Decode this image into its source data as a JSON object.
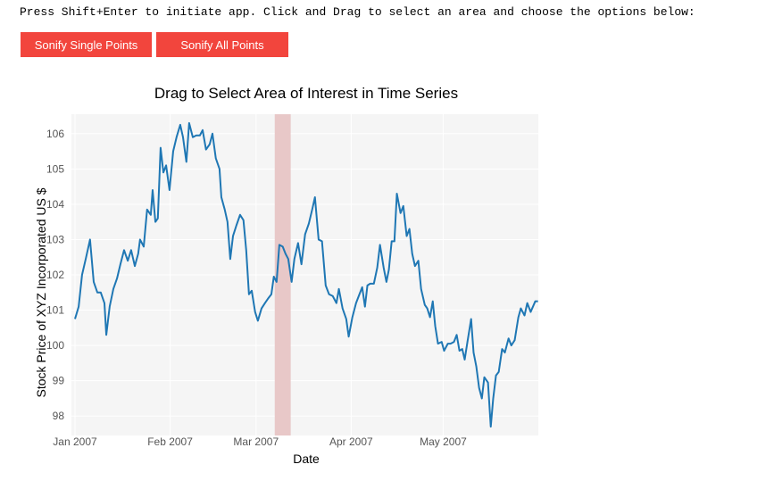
{
  "instruction": "Press Shift+Enter to initiate app. Click and Drag to select an area and choose the options below:",
  "buttons": [
    "Sonify Single Points",
    "Sonify All Points"
  ],
  "chart_data": {
    "type": "line",
    "title": "Drag to Select Area of Interest in Time Series",
    "x_label": "Date",
    "y_label": "Stock Price of XYZ Incorporated US $",
    "x": [
      0,
      1.2,
      2.3,
      3.5,
      4.9,
      6.1,
      7.3,
      8.4,
      9.6,
      10.2,
      11.3,
      12.5,
      13.7,
      14.8,
      16.0,
      17.2,
      18.3,
      19.5,
      20.6,
      21.2,
      22.4,
      23.5,
      24.7,
      25.3,
      26.2,
      27.0,
      27.9,
      28.8,
      29.7,
      30.8,
      32.0,
      33.1,
      34.3,
      35.2,
      36.3,
      37.2,
      38.4,
      39.5,
      40.7,
      41.6,
      42.7,
      43.9,
      44.8,
      45.9,
      47.1,
      47.7,
      48.8,
      49.7,
      50.6,
      51.5,
      52.6,
      53.8,
      54.9,
      55.8,
      56.7,
      57.6,
      58.7,
      59.6,
      60.8,
      61.9,
      63.1,
      64.0,
      64.8,
      65.7,
      66.6,
      67.7,
      68.6,
      69.5,
      70.6,
      71.5,
      72.7,
      73.8,
      75.0,
      76.2,
      77.3,
      78.2,
      79.4,
      80.5,
      81.7,
      82.8,
      84.0,
      85.2,
      86.0,
      87.2,
      88.4,
      89.2,
      90.4,
      91.6,
      92.7,
      93.6,
      94.5,
      95.3,
      96.2,
      97.4,
      98.5,
      99.4,
      100.6,
      101.5,
      102.3,
      103.2,
      104.1,
      104.9,
      106.1,
      107.0,
      108.1,
      109.0,
      109.9,
      110.8,
      111.9,
      112.8,
      114.0,
      114.8,
      115.7,
      116.6,
      117.4,
      118.3,
      119.5,
      120.3,
      121.5,
      122.4,
      123.5,
      124.4,
      125.3,
      126.2,
      127.0,
      127.9,
      129.1,
      129.9,
      130.8,
      131.7,
      132.6,
      133.4,
      134.6,
      135.5,
      136.3,
      137.2,
      138.1,
      139.2,
      140.1,
      141.3,
      142.2,
      143.3,
      144.5,
      145.3,
      146.5,
      147.4,
      148.5,
      150.0,
      150.9
    ],
    "series": [
      {
        "color": "#1f77b4",
        "values": [
          100.75,
          101.1,
          102.0,
          102.45,
          103.0,
          101.8,
          101.5,
          101.5,
          101.2,
          100.3,
          101.1,
          101.6,
          101.9,
          102.3,
          102.7,
          102.4,
          102.7,
          102.25,
          102.6,
          103.0,
          102.8,
          103.85,
          103.7,
          104.4,
          103.5,
          103.6,
          105.6,
          104.9,
          105.1,
          104.4,
          105.5,
          105.9,
          106.25,
          105.9,
          105.2,
          106.3,
          105.9,
          105.95,
          105.95,
          106.1,
          105.55,
          105.7,
          106.0,
          105.3,
          105.0,
          104.2,
          103.85,
          103.5,
          102.45,
          103.1,
          103.4,
          103.7,
          103.55,
          102.7,
          101.45,
          101.55,
          100.95,
          100.7,
          101.05,
          101.2,
          101.35,
          101.45,
          101.95,
          101.8,
          102.85,
          102.8,
          102.6,
          102.45,
          101.8,
          102.45,
          102.9,
          102.3,
          103.15,
          103.45,
          103.85,
          104.2,
          103.0,
          102.95,
          101.7,
          101.45,
          101.4,
          101.2,
          101.6,
          101.05,
          100.75,
          100.25,
          100.8,
          101.2,
          101.45,
          101.65,
          101.1,
          101.7,
          101.75,
          101.75,
          102.2,
          102.85,
          102.2,
          101.8,
          102.15,
          102.95,
          102.95,
          104.3,
          103.75,
          103.95,
          103.1,
          103.3,
          102.6,
          102.25,
          102.4,
          101.6,
          101.15,
          101.05,
          100.8,
          101.25,
          100.55,
          100.05,
          100.1,
          99.85,
          100.05,
          100.05,
          100.1,
          100.3,
          99.85,
          99.9,
          99.6,
          100.1,
          100.75,
          99.8,
          99.4,
          98.8,
          98.5,
          99.1,
          98.95,
          97.7,
          98.5,
          99.15,
          99.25,
          99.9,
          99.8,
          100.2,
          100.0,
          100.15,
          100.8,
          101.05,
          100.85,
          101.2,
          100.95,
          101.25,
          101.25
        ]
      }
    ],
    "selection": {
      "range": [
        65.1,
        70.3
      ],
      "color": "#e8c8c8"
    },
    "xlim": [
      0,
      151
    ],
    "xticks": [
      {
        "value": 0,
        "label": "Jan 2007"
      },
      {
        "value": 31,
        "label": "Feb 2007"
      },
      {
        "value": 59,
        "label": "Mar 2007"
      },
      {
        "value": 90,
        "label": "Apr 2007"
      },
      {
        "value": 120,
        "label": "May 2007"
      }
    ],
    "ylim": [
      97.45,
      106.55
    ],
    "yticks": [
      98,
      99,
      100,
      101,
      102,
      103,
      104,
      105,
      106
    ],
    "grid": true
  }
}
